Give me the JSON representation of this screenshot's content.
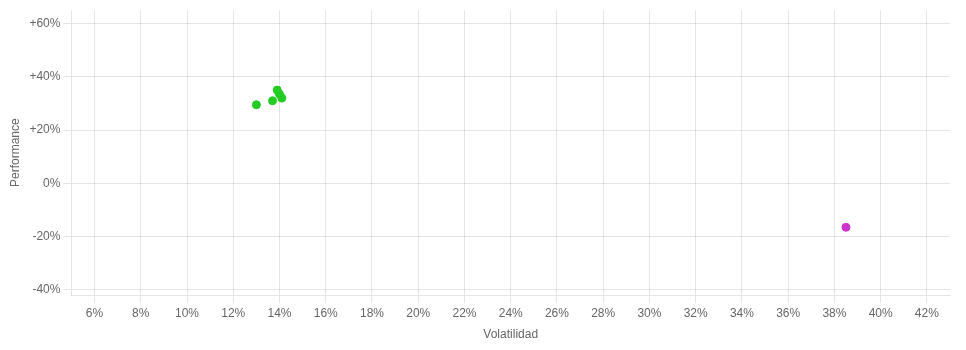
{
  "chart_data": {
    "type": "scatter",
    "xlabel": "Volatilidad",
    "ylabel": "Performance",
    "xlim": [
      0.05,
      0.43
    ],
    "ylim": [
      -0.42,
      0.65
    ],
    "xticks": [
      {
        "value": 0.06,
        "label": "6%"
      },
      {
        "value": 0.08,
        "label": "8%"
      },
      {
        "value": 0.1,
        "label": "10%"
      },
      {
        "value": 0.12,
        "label": "12%"
      },
      {
        "value": 0.14,
        "label": "14%"
      },
      {
        "value": 0.16,
        "label": "16%"
      },
      {
        "value": 0.18,
        "label": "18%"
      },
      {
        "value": 0.2,
        "label": "20%"
      },
      {
        "value": 0.22,
        "label": "22%"
      },
      {
        "value": 0.24,
        "label": "24%"
      },
      {
        "value": 0.26,
        "label": "26%"
      },
      {
        "value": 0.28,
        "label": "28%"
      },
      {
        "value": 0.3,
        "label": "30%"
      },
      {
        "value": 0.32,
        "label": "32%"
      },
      {
        "value": 0.34,
        "label": "34%"
      },
      {
        "value": 0.36,
        "label": "36%"
      },
      {
        "value": 0.38,
        "label": "38%"
      },
      {
        "value": 0.4,
        "label": "40%"
      },
      {
        "value": 0.42,
        "label": "42%"
      }
    ],
    "yticks": [
      {
        "value": -0.4,
        "label": "-40%"
      },
      {
        "value": -0.2,
        "label": "-20%"
      },
      {
        "value": 0.0,
        "label": "0%"
      },
      {
        "value": 0.2,
        "label": "+20%"
      },
      {
        "value": 0.4,
        "label": "+40%"
      },
      {
        "value": 0.6,
        "label": "+60%"
      }
    ],
    "grid": true,
    "series": [
      {
        "color": "#22cc22",
        "values": [
          [
            0.13,
            0.295
          ],
          [
            0.137,
            0.31
          ],
          [
            0.14,
            0.335
          ],
          [
            0.141,
            0.32
          ],
          [
            0.139,
            0.35
          ]
        ]
      },
      {
        "color": "#cc33cc",
        "values": [
          [
            0.385,
            -0.165
          ]
        ]
      }
    ]
  }
}
